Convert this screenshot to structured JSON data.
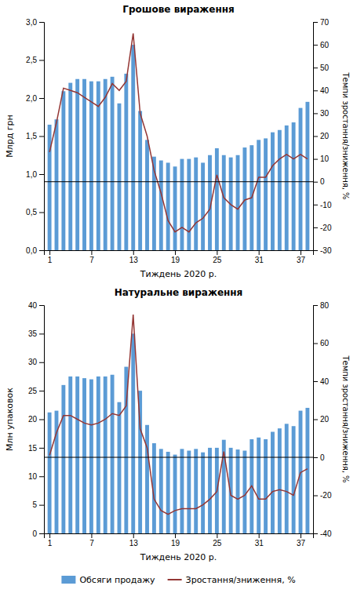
{
  "chart_data": [
    {
      "type": "bar",
      "title": "Грошове вираження",
      "xlabel": "Тиждень 2020 р.",
      "ylabel": "Млрд грн",
      "y2label": "Темпи зростання/зниження, %",
      "x": [
        1,
        2,
        3,
        4,
        5,
        6,
        7,
        8,
        9,
        10,
        11,
        12,
        13,
        14,
        15,
        16,
        17,
        18,
        19,
        20,
        21,
        22,
        23,
        24,
        25,
        26,
        27,
        28,
        29,
        30,
        31,
        32,
        33,
        34,
        35,
        36,
        37,
        38
      ],
      "xlim": [
        0.2,
        38.8
      ],
      "xticks": [
        1,
        7,
        13,
        19,
        25,
        31,
        37
      ],
      "ylim": [
        0,
        3.0
      ],
      "yticks": [
        {
          "value": 0.0,
          "label": "0,0"
        },
        {
          "value": 0.5,
          "label": "0,5"
        },
        {
          "value": 1.0,
          "label": "1,0"
        },
        {
          "value": 1.5,
          "label": "1,5"
        },
        {
          "value": 2.0,
          "label": "2,0"
        },
        {
          "value": 2.5,
          "label": "2,5"
        },
        {
          "value": 3.0,
          "label": "3,0"
        }
      ],
      "y2lim": [
        -30,
        70
      ],
      "y2ticks": [
        -30,
        -20,
        -10,
        0,
        10,
        20,
        30,
        40,
        50,
        60,
        70
      ],
      "grid": false,
      "series": [
        {
          "name": "Обсяги продажу",
          "type": "bar",
          "color": "#5B9BD5",
          "values": [
            1.65,
            1.72,
            2.09,
            2.2,
            2.25,
            2.25,
            2.22,
            2.22,
            2.25,
            2.28,
            1.93,
            2.32,
            2.7,
            1.83,
            1.45,
            1.23,
            1.18,
            1.15,
            1.1,
            1.2,
            1.2,
            1.22,
            1.15,
            1.25,
            1.34,
            1.25,
            1.22,
            1.25,
            1.35,
            1.38,
            1.45,
            1.47,
            1.55,
            1.58,
            1.64,
            1.68,
            1.87,
            1.95
          ]
        },
        {
          "name": "Зростання/зниження, %",
          "type": "line",
          "color": "#943634",
          "axis": "y2",
          "values": [
            13,
            26,
            41,
            40,
            39,
            37,
            35,
            33,
            37,
            43,
            40,
            44,
            65,
            30,
            20,
            5,
            -5,
            -17,
            -22,
            -20,
            -22,
            -18,
            -16,
            -12,
            3,
            -7,
            -10,
            -12,
            -8,
            -7,
            2,
            2,
            7,
            10,
            12,
            10,
            12,
            10
          ]
        }
      ]
    },
    {
      "type": "bar",
      "title": "Натуральне вираження",
      "xlabel": "Тиждень 2020 р.",
      "ylabel": "Млн упаковок",
      "y2label": "Темпи зростання/зниження, %",
      "x": [
        1,
        2,
        3,
        4,
        5,
        6,
        7,
        8,
        9,
        10,
        11,
        12,
        13,
        14,
        15,
        16,
        17,
        18,
        19,
        20,
        21,
        22,
        23,
        24,
        25,
        26,
        27,
        28,
        29,
        30,
        31,
        32,
        33,
        34,
        35,
        36,
        37,
        38
      ],
      "xlim": [
        0.2,
        38.8
      ],
      "xticks": [
        1,
        7,
        13,
        19,
        25,
        31,
        37
      ],
      "ylim": [
        0,
        40
      ],
      "yticks": [
        0,
        5,
        10,
        15,
        20,
        25,
        30,
        35,
        40
      ],
      "y2lim": [
        -40,
        80
      ],
      "y2ticks": [
        -40,
        -20,
        0,
        20,
        40,
        60,
        80
      ],
      "grid": false,
      "legend": "bottom",
      "series": [
        {
          "name": "Обсяги продажу",
          "type": "bar",
          "color": "#5B9BD5",
          "values": [
            21.2,
            21.5,
            26.0,
            27.5,
            27.5,
            27.2,
            27.0,
            27.5,
            27.5,
            27.8,
            23.0,
            29.2,
            35.0,
            25.0,
            19.0,
            15.8,
            14.8,
            14.3,
            13.8,
            14.8,
            14.5,
            14.8,
            14.2,
            15.0,
            15.0,
            16.4,
            15.0,
            14.7,
            14.5,
            16.5,
            16.8,
            16.5,
            17.8,
            18.4,
            19.2,
            18.8,
            21.5,
            22.0
          ]
        },
        {
          "name": "Зростання/зниження, %",
          "type": "line",
          "color": "#943634",
          "axis": "y2",
          "values": [
            1,
            13,
            22,
            22,
            20,
            18,
            17,
            18,
            20,
            23,
            22,
            27,
            75,
            15,
            5,
            -22,
            -28,
            -30,
            -28,
            -27,
            -27,
            -27,
            -25,
            -22,
            -18,
            3,
            -20,
            -22,
            -20,
            -15,
            -22,
            -22,
            -18,
            -17,
            -18,
            -20,
            -8,
            -6
          ]
        }
      ]
    }
  ]
}
